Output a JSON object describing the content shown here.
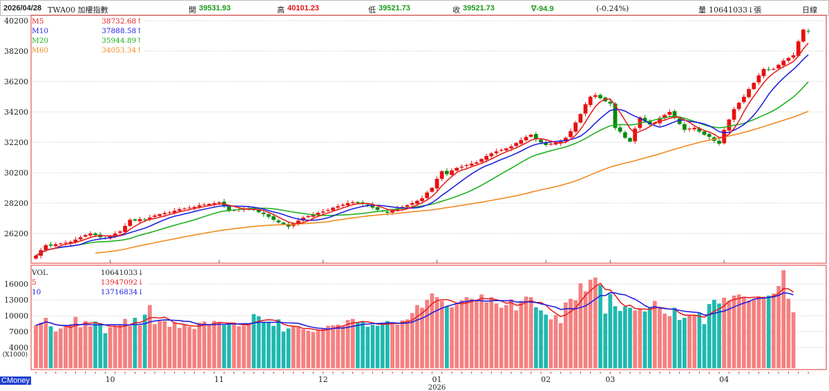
{
  "header": {
    "date": "2026/04/28",
    "symbol": "TWA00 加權指數",
    "open_label": "開",
    "open": "39531.93",
    "high_label": "高",
    "high": "40101.23",
    "low_label": "低",
    "low": "39521.73",
    "close_label": "收",
    "close": "39521.73",
    "change": "∇-94.9",
    "change_pct": "(-0.24%)",
    "volume_label": "量",
    "volume": "10641033↓張",
    "period": "日線"
  },
  "price_legend": [
    {
      "name": "M5",
      "value": "38732.68↑",
      "color": "#e82020"
    },
    {
      "name": "M10",
      "value": "37888.58↑",
      "color": "#2020e0"
    },
    {
      "name": "M20",
      "value": "35944.89↑",
      "color": "#20b020"
    },
    {
      "name": "M60",
      "value": "34053.34↑",
      "color": "#f08a20"
    }
  ],
  "volume_legend": [
    {
      "name": "VOL",
      "value": "10641033↓",
      "color": "#222222"
    },
    {
      "name": "5",
      "value": "13947092↓",
      "color": "#e82020"
    },
    {
      "name": "10",
      "value": "13716834↓",
      "color": "#2020e0"
    }
  ],
  "brand": "CMoney",
  "colors": {
    "up": "#e81010",
    "down": "#0a8a0a",
    "vol_up": "#f58080",
    "vol_down": "#20b8b0",
    "frame": "#e03030"
  },
  "chart_data": {
    "type": "candlestick",
    "price_axis": {
      "ticks": [
        40200,
        38200,
        36200,
        34200,
        32200,
        30200,
        28200,
        26200
      ],
      "range": [
        24000,
        40300
      ]
    },
    "volume_axis": {
      "ticks": [
        16000,
        13000,
        10000,
        7000,
        4000
      ],
      "unit_label": "(X1000)",
      "range": [
        0,
        19500
      ]
    },
    "month_labels": [
      {
        "label": "10",
        "index": 15
      },
      {
        "label": "11",
        "index": 37
      },
      {
        "label": "12",
        "index": 58
      },
      {
        "label": "01",
        "index": 81
      },
      {
        "label": "02",
        "index": 103
      },
      {
        "label": "03",
        "index": 116
      },
      {
        "label": "04",
        "index": 139
      }
    ],
    "year_label": {
      "label": "2026",
      "index": 81
    },
    "last_open": 39531.93,
    "closes": [
      24750,
      25100,
      25430,
      25400,
      25500,
      25550,
      25600,
      25650,
      25800,
      25950,
      26100,
      26200,
      26100,
      25950,
      25880,
      26050,
      26200,
      26330,
      26700,
      27100,
      27050,
      27150,
      27100,
      27250,
      27380,
      27470,
      27550,
      27600,
      27700,
      27800,
      27850,
      27900,
      27950,
      28050,
      28100,
      28150,
      28200,
      28250,
      28000,
      27700,
      27750,
      27800,
      27850,
      27840,
      27750,
      27600,
      27470,
      27300,
      27100,
      26930,
      26800,
      26650,
      26850,
      27050,
      27250,
      27350,
      27450,
      27560,
      27650,
      27750,
      27900,
      28000,
      28100,
      28200,
      28250,
      28200,
      28150,
      28100,
      27900,
      27750,
      27650,
      27560,
      27700,
      27850,
      27950,
      28060,
      28200,
      28350,
      28520,
      28900,
      29200,
      29800,
      30290,
      30100,
      30350,
      30520,
      30600,
      30700,
      30800,
      30880,
      31100,
      31300,
      31470,
      31600,
      31700,
      31800,
      31930,
      32150,
      32350,
      32550,
      32700,
      32400,
      32200,
      32020,
      32100,
      32150,
      32250,
      32500,
      32930,
      33500,
      34060,
      34700,
      35200,
      35300,
      35100,
      34900,
      34750,
      33150,
      32900,
      32500,
      32250,
      33100,
      33840,
      33600,
      33380,
      33500,
      33800,
      34000,
      34200,
      33800,
      33400,
      33020,
      33100,
      33150,
      32900,
      32700,
      32560,
      32300,
      32110,
      33020,
      33700,
      34380,
      34800,
      35200,
      35700,
      36110,
      36600,
      37020,
      37000,
      37020,
      37300,
      37570,
      37750,
      37930,
      38840,
      39616.63,
      39521.73
    ],
    "volumes": [
      8200,
      8700,
      9600,
      8000,
      7000,
      7600,
      7900,
      8400,
      9800,
      7800,
      9000,
      8000,
      8900,
      8600,
      6700,
      7800,
      8100,
      8200,
      9400,
      8100,
      9600,
      8200,
      10200,
      12000,
      8400,
      9000,
      9000,
      7900,
      8800,
      7700,
      8300,
      7900,
      7500,
      8700,
      8900,
      8400,
      9000,
      8800,
      8200,
      8600,
      8400,
      8000,
      8100,
      8500,
      10300,
      9900,
      8800,
      8700,
      8100,
      9300,
      7000,
      7600,
      8000,
      7800,
      7400,
      7200,
      6900,
      7200,
      7500,
      8100,
      8200,
      8300,
      8100,
      9200,
      9400,
      8700,
      9000,
      7900,
      8300,
      8100,
      8700,
      9000,
      8500,
      8300,
      9100,
      9300,
      10500,
      12000,
      11500,
      13000,
      14200,
      13500,
      12800,
      11800,
      11600,
      12200,
      12900,
      13500,
      13200,
      12800,
      14000,
      12500,
      13500,
      12300,
      11500,
      12000,
      13100,
      11000,
      12800,
      13600,
      13500,
      11600,
      11000,
      10200,
      9300,
      10100,
      8600,
      12500,
      13200,
      12900,
      16100,
      14600,
      16800,
      17200,
      15800,
      10400,
      14100,
      11800,
      10900,
      11700,
      11500,
      11000,
      11200,
      10800,
      11500,
      12800,
      11600,
      10400,
      9900,
      11500,
      9200,
      9600,
      10200,
      10000,
      10500,
      8400,
      12200,
      13000,
      12300,
      13400,
      12800,
      13800,
      14000,
      13500,
      12900,
      13200,
      13700,
      13600,
      13800,
      14200,
      15600,
      18600,
      13200,
      10641
    ]
  }
}
